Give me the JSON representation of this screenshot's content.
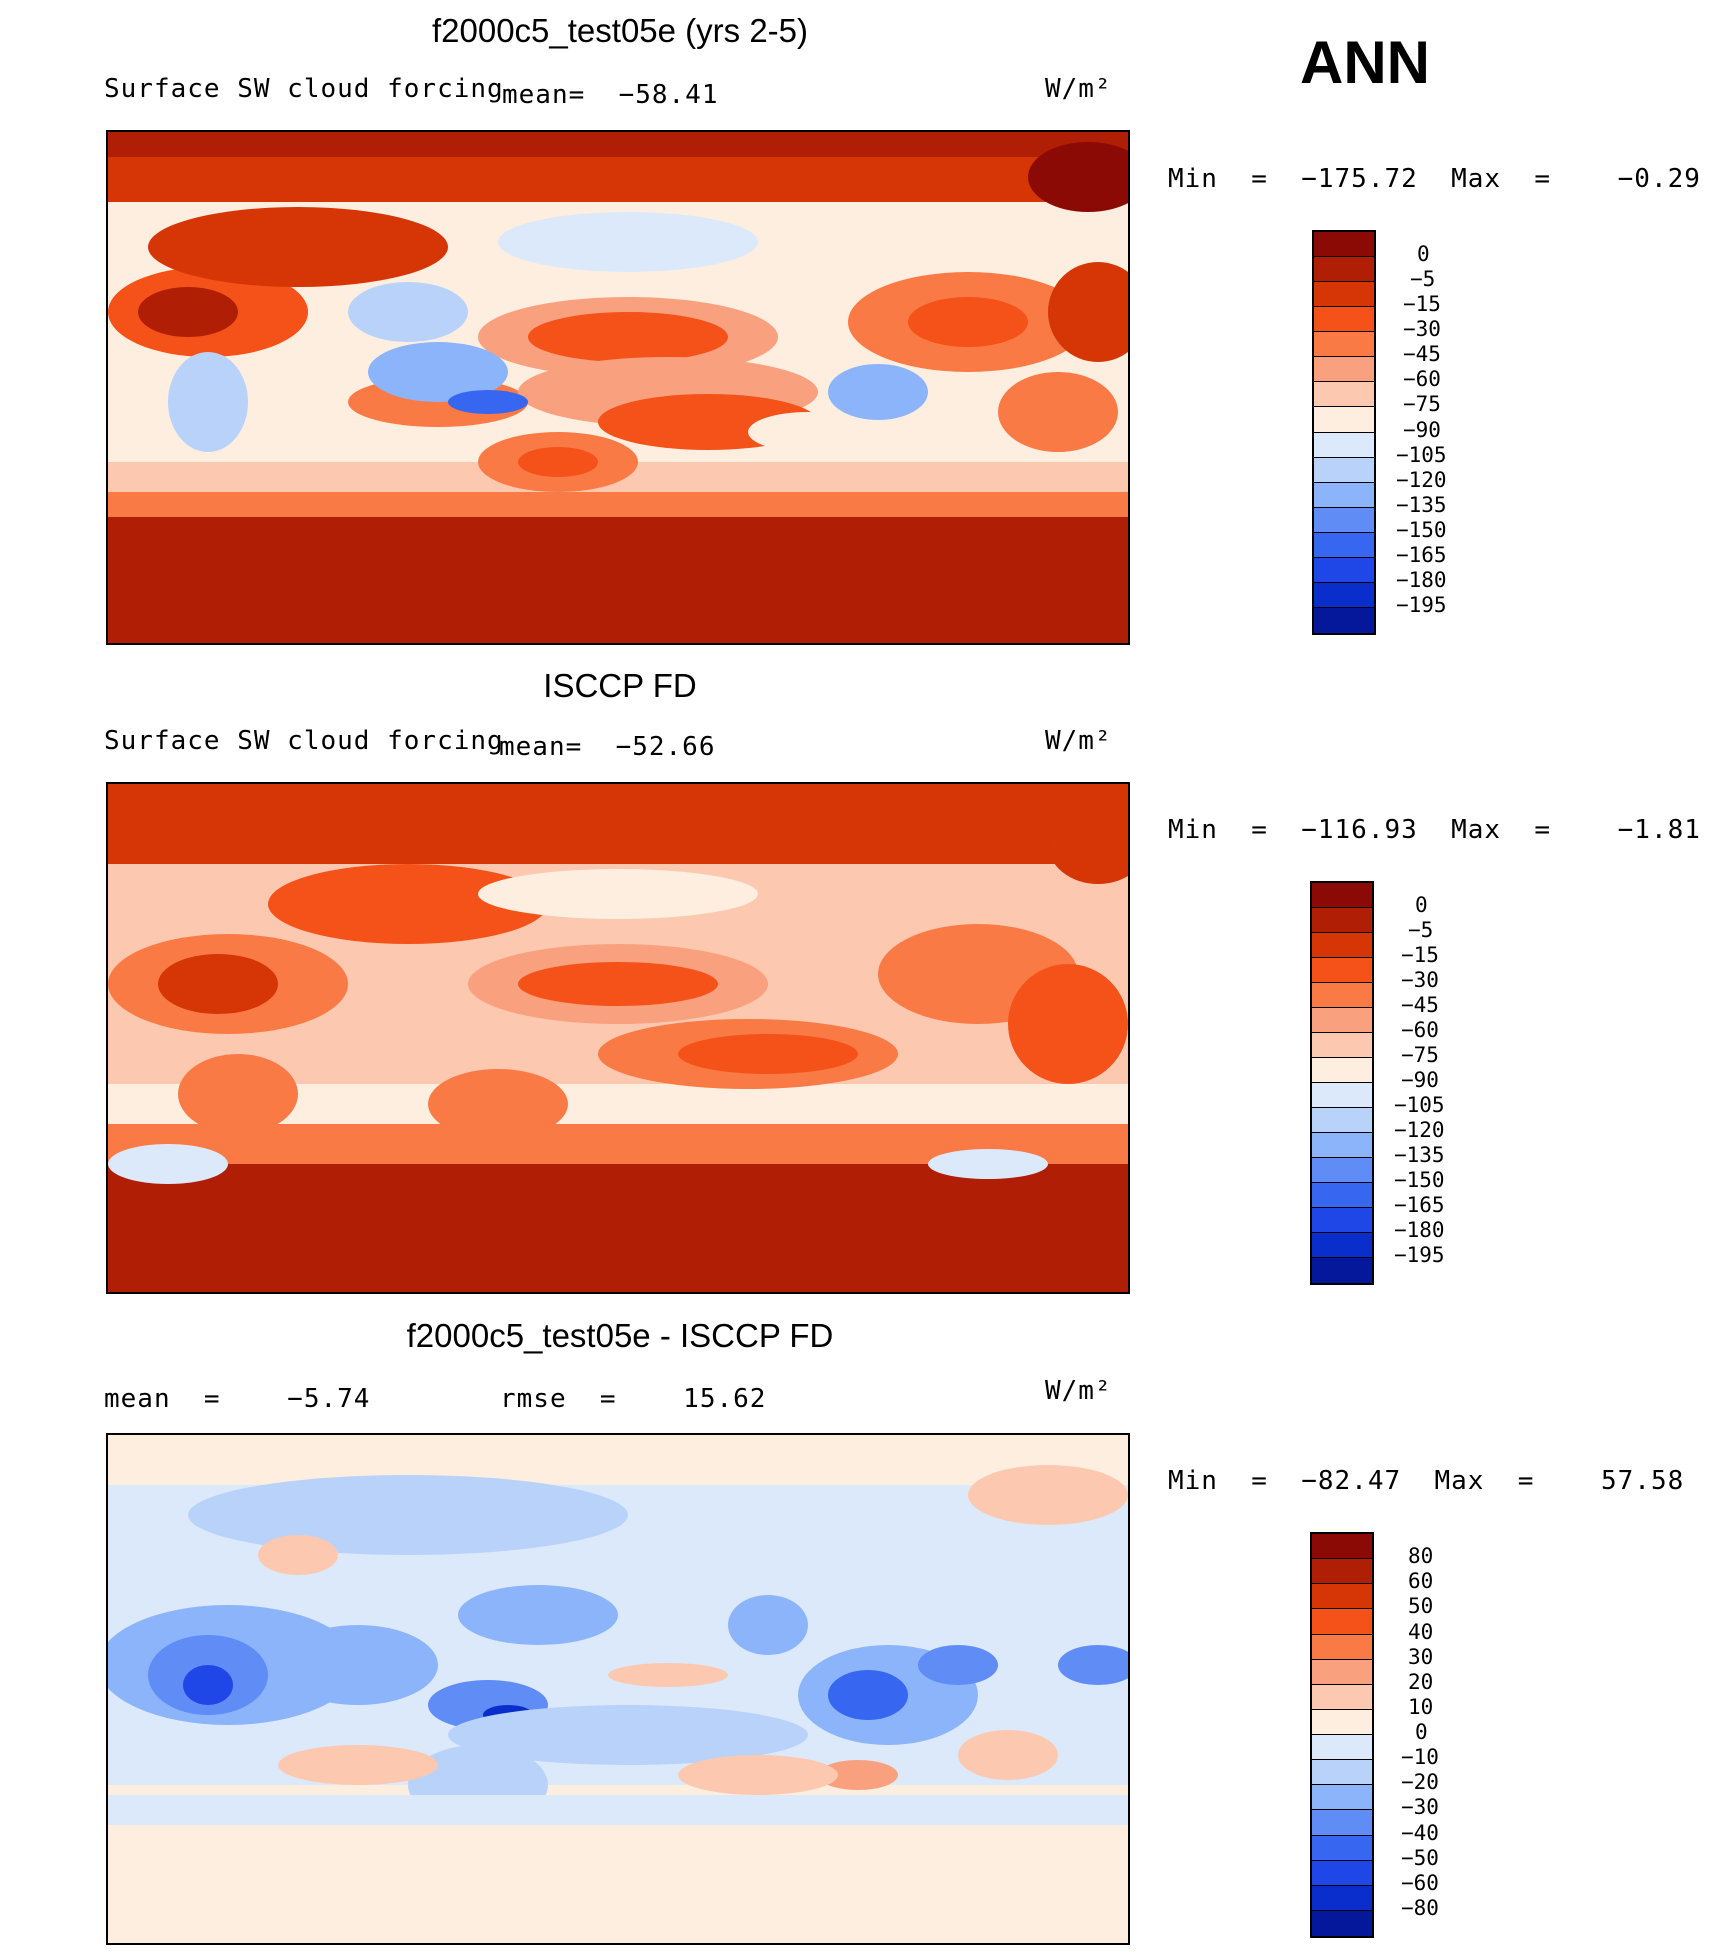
{
  "season": "ANN",
  "panels": [
    {
      "title": "f2000c5_test05e (yrs 2-5)",
      "variable": "Surface SW cloud forcing",
      "stat1": "mean=  −58.41",
      "stat2": "",
      "units": "W/m²",
      "minmax": "Min  =  −175.72  Max  =    −0.29",
      "palette": "abs"
    },
    {
      "title": "ISCCP FD",
      "variable": "Surface SW cloud forcing",
      "stat1": "mean=  −52.66",
      "stat2": "",
      "units": "W/m²",
      "minmax": "Min  =  −116.93  Max  =    −1.81",
      "palette": "abs"
    },
    {
      "title": "f2000c5_test05e - ISCCP FD",
      "variable": "",
      "stat1": "mean  =    −5.74",
      "stat2": "rmse  =    15.62",
      "units": "W/m²",
      "minmax": "Min  =  −82.47  Max  =    57.58",
      "palette": "diff"
    }
  ],
  "colorbars": {
    "abs": {
      "colors": [
        "#8b0a05",
        "#b01e05",
        "#d63505",
        "#f5521a",
        "#f97a45",
        "#f9a07e",
        "#fcc8b0",
        "#fdeee0",
        "#dce9fa",
        "#b8d2fa",
        "#8cb4fa",
        "#5f8cf5",
        "#3766f0",
        "#1f46e6",
        "#0a2ecc",
        "#05179b"
      ],
      "labels": [
        "0",
        "−5",
        "−15",
        "−30",
        "−45",
        "−60",
        "−75",
        "−90",
        "−105",
        "−120",
        "−135",
        "−150",
        "−165",
        "−180",
        "−195"
      ]
    },
    "diff": {
      "colors": [
        "#8b0a05",
        "#b01e05",
        "#d63505",
        "#f5521a",
        "#f97a45",
        "#f9a07e",
        "#fcc8b0",
        "#fdeee0",
        "#dce9fa",
        "#b8d2fa",
        "#8cb4fa",
        "#5f8cf5",
        "#3766f0",
        "#1f46e6",
        "#0a2ecc",
        "#05179b"
      ],
      "labels": [
        "80",
        "60",
        "50",
        "40",
        "30",
        "20",
        "10",
        "0",
        "−10",
        "−20",
        "−30",
        "−40",
        "−50",
        "−60",
        "−80"
      ]
    }
  }
}
